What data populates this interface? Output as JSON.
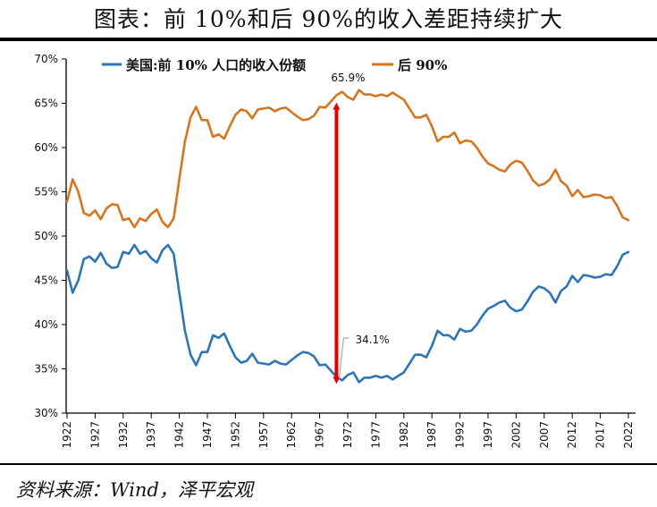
{
  "title": "图表：前 10%和后 90%的收入差距持续扩大",
  "source": "资料来源：Wind，泽平宏观",
  "chart_data": {
    "type": "line",
    "title": "",
    "xlabel": "",
    "ylabel": "",
    "ylim": [
      30,
      70
    ],
    "yticks": [
      "30%",
      "35%",
      "40%",
      "45%",
      "50%",
      "55%",
      "60%",
      "65%",
      "70%"
    ],
    "xlim": [
      1922,
      2022
    ],
    "xticks": [
      "1922",
      "1927",
      "1932",
      "1937",
      "1942",
      "1947",
      "1952",
      "1957",
      "1962",
      "1967",
      "1972",
      "1977",
      "1982",
      "1987",
      "1992",
      "1997",
      "2002",
      "2007",
      "2012",
      "2017",
      "2022"
    ],
    "grid": false,
    "legend_position": "top",
    "x": [
      1922,
      1923,
      1924,
      1925,
      1926,
      1927,
      1928,
      1929,
      1930,
      1931,
      1932,
      1933,
      1934,
      1935,
      1936,
      1937,
      1938,
      1939,
      1940,
      1941,
      1942,
      1943,
      1944,
      1945,
      1946,
      1947,
      1948,
      1949,
      1950,
      1951,
      1952,
      1953,
      1954,
      1955,
      1956,
      1957,
      1958,
      1959,
      1960,
      1961,
      1962,
      1963,
      1964,
      1965,
      1966,
      1967,
      1968,
      1969,
      1970,
      1971,
      1972,
      1973,
      1974,
      1975,
      1976,
      1977,
      1978,
      1979,
      1980,
      1981,
      1982,
      1983,
      1984,
      1985,
      1986,
      1987,
      1988,
      1989,
      1990,
      1991,
      1992,
      1993,
      1994,
      1995,
      1996,
      1997,
      1998,
      1999,
      2000,
      2001,
      2002,
      2003,
      2004,
      2005,
      2006,
      2007,
      2008,
      2009,
      2010,
      2011,
      2012,
      2013,
      2014,
      2015,
      2016,
      2017,
      2018,
      2019,
      2020,
      2021,
      2022
    ],
    "series": [
      {
        "name": "美国:前 10% 人口的收入份额",
        "color": "#2e75b6",
        "values": [
          46.1,
          43.6,
          45.0,
          47.4,
          47.7,
          47.1,
          48.1,
          46.9,
          46.4,
          46.5,
          48.2,
          48.0,
          49.0,
          48.0,
          48.3,
          47.5,
          47.0,
          48.4,
          49.0,
          48.0,
          43.6,
          39.3,
          36.6,
          35.4,
          36.9,
          36.9,
          38.8,
          38.5,
          39.0,
          37.6,
          36.3,
          35.7,
          35.9,
          36.7,
          35.7,
          35.6,
          35.5,
          35.9,
          35.6,
          35.5,
          36.0,
          36.5,
          36.9,
          36.8,
          36.4,
          35.4,
          35.5,
          34.8,
          34.1,
          33.7,
          34.3,
          34.6,
          33.5,
          34.0,
          34.0,
          34.2,
          34.0,
          34.2,
          33.8,
          34.2,
          34.6,
          35.6,
          36.6,
          36.6,
          36.3,
          37.6,
          39.3,
          38.8,
          38.8,
          38.3,
          39.5,
          39.2,
          39.3,
          40.0,
          41.0,
          41.8,
          42.1,
          42.5,
          42.7,
          41.9,
          41.5,
          41.7,
          42.6,
          43.7,
          44.3,
          44.1,
          43.6,
          42.5,
          43.8,
          44.3,
          45.5,
          44.8,
          45.6,
          45.5,
          45.3,
          45.4,
          45.7,
          45.6,
          46.6,
          47.9,
          48.2
        ]
      },
      {
        "name": "后 90%",
        "color": "#d5761f",
        "values": [
          53.9,
          56.4,
          55.0,
          52.6,
          52.3,
          52.9,
          51.9,
          53.1,
          53.6,
          53.5,
          51.8,
          52.0,
          51.0,
          52.0,
          51.7,
          52.5,
          53.0,
          51.6,
          51.0,
          52.0,
          56.4,
          60.7,
          63.4,
          64.6,
          63.1,
          63.1,
          61.2,
          61.5,
          61.0,
          62.4,
          63.7,
          64.3,
          64.1,
          63.3,
          64.3,
          64.4,
          64.5,
          64.1,
          64.4,
          64.5,
          64.0,
          63.5,
          63.1,
          63.2,
          63.6,
          64.6,
          64.5,
          65.2,
          65.9,
          66.3,
          65.7,
          65.4,
          66.5,
          66.0,
          66.0,
          65.8,
          66.0,
          65.8,
          66.2,
          65.8,
          65.4,
          64.4,
          63.4,
          63.4,
          63.7,
          62.4,
          60.7,
          61.2,
          61.2,
          61.7,
          60.5,
          60.8,
          60.7,
          60.0,
          59.0,
          58.2,
          57.9,
          57.5,
          57.3,
          58.1,
          58.5,
          58.3,
          57.4,
          56.3,
          55.7,
          55.9,
          56.4,
          57.5,
          56.2,
          55.7,
          54.5,
          55.2,
          54.4,
          54.5,
          54.7,
          54.6,
          54.3,
          54.4,
          53.4,
          52.1,
          51.8
        ]
      }
    ],
    "annotations": [
      {
        "text": "65.9%",
        "year": 1970,
        "value": 65.9
      },
      {
        "text": "34.1%",
        "year": 1970,
        "value": 34.1
      }
    ],
    "arrow_color": "#e00000"
  }
}
